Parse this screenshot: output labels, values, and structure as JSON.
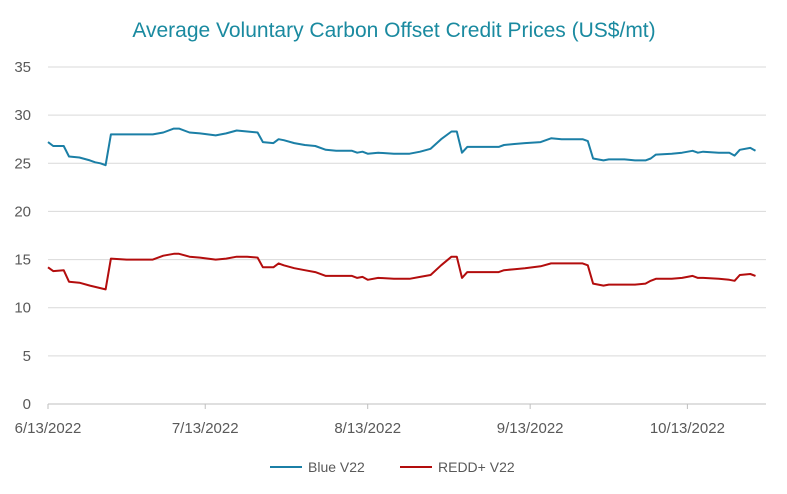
{
  "chart_data": {
    "type": "line",
    "title": "Average Voluntary Carbon Offset Credit Prices  (US$/mt)",
    "xlabel": "",
    "ylabel": "",
    "x_range": [
      "2022-06-13",
      "2022-10-28"
    ],
    "x_ticks": [
      {
        "date": "2022-06-13",
        "label": "6/13/2022"
      },
      {
        "date": "2022-07-13",
        "label": "7/13/2022"
      },
      {
        "date": "2022-08-13",
        "label": "8/13/2022"
      },
      {
        "date": "2022-09-13",
        "label": "9/13/2022"
      },
      {
        "date": "2022-10-13",
        "label": "10/13/2022"
      }
    ],
    "ylim": [
      0,
      35
    ],
    "y_ticks": [
      0,
      5,
      10,
      15,
      20,
      25,
      30,
      35
    ],
    "grid": "horizontal",
    "legend_position": "bottom",
    "series": [
      {
        "name": "Blue V22",
        "color": "#1b7fa6",
        "points": [
          [
            "2022-06-13",
            27.2
          ],
          [
            "2022-06-14",
            26.8
          ],
          [
            "2022-06-16",
            26.8
          ],
          [
            "2022-06-17",
            25.7
          ],
          [
            "2022-06-19",
            25.6
          ],
          [
            "2022-06-21",
            25.3
          ],
          [
            "2022-06-23",
            25.0
          ],
          [
            "2022-06-22",
            25.1
          ],
          [
            "2022-06-24",
            24.8
          ],
          [
            "2022-06-25",
            28.0
          ],
          [
            "2022-06-28",
            28.0
          ],
          [
            "2022-07-01",
            28.0
          ],
          [
            "2022-07-03",
            28.0
          ],
          [
            "2022-07-05",
            28.2
          ],
          [
            "2022-07-07",
            28.6
          ],
          [
            "2022-07-08",
            28.6
          ],
          [
            "2022-07-10",
            28.2
          ],
          [
            "2022-07-12",
            28.1
          ],
          [
            "2022-07-15",
            27.9
          ],
          [
            "2022-07-17",
            28.1
          ],
          [
            "2022-07-19",
            28.4
          ],
          [
            "2022-07-21",
            28.3
          ],
          [
            "2022-07-23",
            28.2
          ],
          [
            "2022-07-24",
            27.2
          ],
          [
            "2022-07-26",
            27.1
          ],
          [
            "2022-07-27",
            27.5
          ],
          [
            "2022-07-28",
            27.4
          ],
          [
            "2022-07-30",
            27.1
          ],
          [
            "2022-08-01",
            26.9
          ],
          [
            "2022-08-03",
            26.8
          ],
          [
            "2022-08-05",
            26.4
          ],
          [
            "2022-08-07",
            26.3
          ],
          [
            "2022-08-10",
            26.3
          ],
          [
            "2022-08-11",
            26.1
          ],
          [
            "2022-08-12",
            26.2
          ],
          [
            "2022-08-13",
            26.0
          ],
          [
            "2022-08-15",
            26.1
          ],
          [
            "2022-08-18",
            26.0
          ],
          [
            "2022-08-21",
            26.0
          ],
          [
            "2022-08-23",
            26.2
          ],
          [
            "2022-08-25",
            26.5
          ],
          [
            "2022-08-27",
            27.5
          ],
          [
            "2022-08-29",
            28.3
          ],
          [
            "2022-08-30",
            28.3
          ],
          [
            "2022-08-31",
            26.1
          ],
          [
            "2022-09-01",
            26.7
          ],
          [
            "2022-09-04",
            26.7
          ],
          [
            "2022-09-07",
            26.7
          ],
          [
            "2022-09-08",
            26.9
          ],
          [
            "2022-09-10",
            27.0
          ],
          [
            "2022-09-12",
            27.1
          ],
          [
            "2022-09-15",
            27.2
          ],
          [
            "2022-09-17",
            27.6
          ],
          [
            "2022-09-19",
            27.5
          ],
          [
            "2022-09-21",
            27.5
          ],
          [
            "2022-09-23",
            27.5
          ],
          [
            "2022-09-24",
            27.3
          ],
          [
            "2022-09-25",
            25.5
          ],
          [
            "2022-09-27",
            25.3
          ],
          [
            "2022-09-28",
            25.4
          ],
          [
            "2022-10-01",
            25.4
          ],
          [
            "2022-10-03",
            25.3
          ],
          [
            "2022-10-05",
            25.3
          ],
          [
            "2022-10-06",
            25.5
          ],
          [
            "2022-10-07",
            25.9
          ],
          [
            "2022-10-10",
            26.0
          ],
          [
            "2022-10-12",
            26.1
          ],
          [
            "2022-10-14",
            26.3
          ],
          [
            "2022-10-15",
            26.1
          ],
          [
            "2022-10-16",
            26.2
          ],
          [
            "2022-10-19",
            26.1
          ],
          [
            "2022-10-21",
            26.1
          ],
          [
            "2022-10-22",
            25.8
          ],
          [
            "2022-10-23",
            26.4
          ],
          [
            "2022-10-25",
            26.6
          ],
          [
            "2022-10-26",
            26.3
          ]
        ]
      },
      {
        "name": "REDD+ V22",
        "color": "#b30d0d",
        "points": [
          [
            "2022-06-13",
            14.2
          ],
          [
            "2022-06-14",
            13.8
          ],
          [
            "2022-06-16",
            13.9
          ],
          [
            "2022-06-17",
            12.7
          ],
          [
            "2022-06-19",
            12.6
          ],
          [
            "2022-06-21",
            12.3
          ],
          [
            "2022-06-24",
            11.9
          ],
          [
            "2022-06-25",
            15.1
          ],
          [
            "2022-06-28",
            15.0
          ],
          [
            "2022-07-01",
            15.0
          ],
          [
            "2022-07-03",
            15.0
          ],
          [
            "2022-07-05",
            15.4
          ],
          [
            "2022-07-07",
            15.6
          ],
          [
            "2022-07-08",
            15.6
          ],
          [
            "2022-07-10",
            15.3
          ],
          [
            "2022-07-12",
            15.2
          ],
          [
            "2022-07-15",
            15.0
          ],
          [
            "2022-07-17",
            15.1
          ],
          [
            "2022-07-19",
            15.3
          ],
          [
            "2022-07-21",
            15.3
          ],
          [
            "2022-07-23",
            15.2
          ],
          [
            "2022-07-24",
            14.2
          ],
          [
            "2022-07-26",
            14.2
          ],
          [
            "2022-07-27",
            14.6
          ],
          [
            "2022-07-28",
            14.4
          ],
          [
            "2022-07-30",
            14.1
          ],
          [
            "2022-08-01",
            13.9
          ],
          [
            "2022-08-03",
            13.7
          ],
          [
            "2022-08-05",
            13.3
          ],
          [
            "2022-08-07",
            13.3
          ],
          [
            "2022-08-10",
            13.3
          ],
          [
            "2022-08-11",
            13.1
          ],
          [
            "2022-08-12",
            13.2
          ],
          [
            "2022-08-13",
            12.9
          ],
          [
            "2022-08-15",
            13.1
          ],
          [
            "2022-08-18",
            13.0
          ],
          [
            "2022-08-21",
            13.0
          ],
          [
            "2022-08-23",
            13.2
          ],
          [
            "2022-08-25",
            13.4
          ],
          [
            "2022-08-27",
            14.4
          ],
          [
            "2022-08-29",
            15.3
          ],
          [
            "2022-08-30",
            15.3
          ],
          [
            "2022-08-31",
            13.1
          ],
          [
            "2022-09-01",
            13.7
          ],
          [
            "2022-09-04",
            13.7
          ],
          [
            "2022-09-07",
            13.7
          ],
          [
            "2022-09-08",
            13.9
          ],
          [
            "2022-09-10",
            14.0
          ],
          [
            "2022-09-12",
            14.1
          ],
          [
            "2022-09-15",
            14.3
          ],
          [
            "2022-09-17",
            14.6
          ],
          [
            "2022-09-19",
            14.6
          ],
          [
            "2022-09-21",
            14.6
          ],
          [
            "2022-09-23",
            14.6
          ],
          [
            "2022-09-24",
            14.4
          ],
          [
            "2022-09-25",
            12.5
          ],
          [
            "2022-09-27",
            12.3
          ],
          [
            "2022-09-28",
            12.4
          ],
          [
            "2022-10-01",
            12.4
          ],
          [
            "2022-10-03",
            12.4
          ],
          [
            "2022-10-05",
            12.5
          ],
          [
            "2022-10-06",
            12.8
          ],
          [
            "2022-10-07",
            13.0
          ],
          [
            "2022-10-10",
            13.0
          ],
          [
            "2022-10-12",
            13.1
          ],
          [
            "2022-10-14",
            13.3
          ],
          [
            "2022-10-15",
            13.1
          ],
          [
            "2022-10-16",
            13.1
          ],
          [
            "2022-10-19",
            13.0
          ],
          [
            "2022-10-21",
            12.9
          ],
          [
            "2022-10-22",
            12.8
          ],
          [
            "2022-10-23",
            13.4
          ],
          [
            "2022-10-25",
            13.5
          ],
          [
            "2022-10-26",
            13.3
          ]
        ]
      }
    ]
  }
}
